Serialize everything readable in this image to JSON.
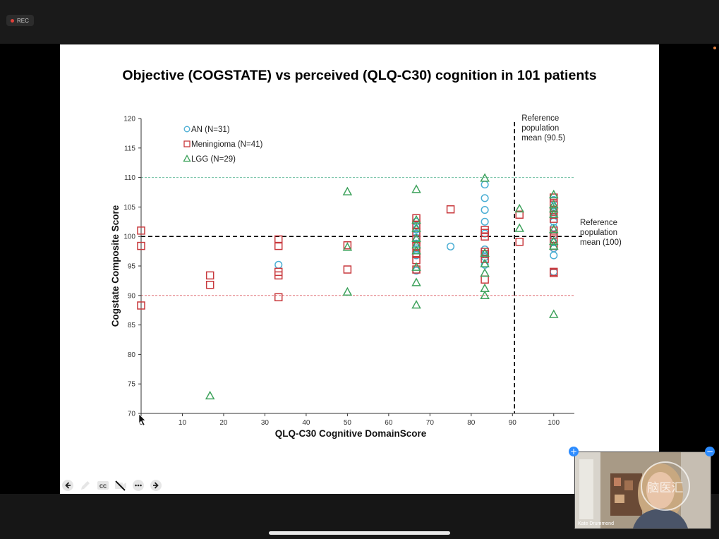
{
  "recording": {
    "label": "REC"
  },
  "slide": {
    "title": "Objective (COGSTATE) vs perceived (QLQ-C30) cognition in  101 patients"
  },
  "participant": {
    "name": "Kate Drummond",
    "watermark": "脑医汇"
  },
  "toolbar": {
    "icons": [
      "back-icon",
      "pen-icon",
      "captions-icon",
      "video-off-icon",
      "more-icon",
      "forward-icon"
    ]
  },
  "colors": {
    "AN": "#4aaed4",
    "Meningioma": "#c8383c",
    "LGG": "#3ea25c",
    "upper_ref": "#6cbfa0",
    "lower_ref": "#e07478"
  },
  "chart_data": {
    "type": "scatter",
    "xlabel": "QLQ-C30 Cognitive DomainScore",
    "ylabel": "Cogstate Composite Score",
    "xlim": [
      0,
      105
    ],
    "ylim": [
      70,
      120
    ],
    "xticks": [
      0,
      10,
      20,
      30,
      40,
      50,
      60,
      70,
      80,
      90,
      100
    ],
    "yticks": [
      70,
      75,
      80,
      85,
      90,
      95,
      100,
      105,
      110,
      115,
      120
    ],
    "legend_position": "top-left",
    "reference_lines": [
      {
        "axis": "x",
        "value": 90.5,
        "style": "dashed-black",
        "label": "Reference population mean (90.5)",
        "label_lines": [
          "Reference",
          "population",
          "mean (90.5)"
        ]
      },
      {
        "axis": "y",
        "value": 100,
        "style": "dashed-black",
        "label": "Reference population mean (100)",
        "label_lines": [
          "Reference",
          "population",
          "mean (100)"
        ]
      },
      {
        "axis": "y",
        "value": 110,
        "style": "dotted-green"
      },
      {
        "axis": "y",
        "value": 90,
        "style": "dotted-red"
      }
    ],
    "series": [
      {
        "name": "AN (N=31)",
        "marker": "circle",
        "color": "#4aaed4",
        "points": [
          [
            33.3,
            95.2
          ],
          [
            66.7,
            102.5
          ],
          [
            66.7,
            101.8
          ],
          [
            66.7,
            101.2
          ],
          [
            66.7,
            100.5
          ],
          [
            66.7,
            99.8
          ],
          [
            66.7,
            98.8
          ],
          [
            66.7,
            98.0
          ],
          [
            66.7,
            96.8
          ],
          [
            66.7,
            94.2
          ],
          [
            75,
            98.3
          ],
          [
            83.3,
            108.8
          ],
          [
            83.3,
            106.5
          ],
          [
            83.3,
            104.5
          ],
          [
            83.3,
            102.5
          ],
          [
            83.3,
            100.5
          ],
          [
            83.3,
            97.8
          ],
          [
            83.3,
            96.5
          ],
          [
            83.3,
            95.2
          ],
          [
            100,
            106.2
          ],
          [
            100,
            105.0
          ],
          [
            100,
            103.8
          ],
          [
            100,
            102.5
          ],
          [
            100,
            101.5
          ],
          [
            100,
            100.2
          ],
          [
            100,
            99.0
          ],
          [
            100,
            98.0
          ],
          [
            100,
            96.8
          ],
          [
            100,
            94.0
          ],
          [
            83.3,
            97.0
          ],
          [
            100,
            104.2
          ]
        ]
      },
      {
        "name": "Meningioma (N=41)",
        "marker": "square",
        "color": "#c8383c",
        "points": [
          [
            0,
            101.0
          ],
          [
            0,
            98.4
          ],
          [
            0,
            88.3
          ],
          [
            16.7,
            93.4
          ],
          [
            16.7,
            91.8
          ],
          [
            33.3,
            99.5
          ],
          [
            33.3,
            98.4
          ],
          [
            33.3,
            94.0
          ],
          [
            33.3,
            93.4
          ],
          [
            33.3,
            89.7
          ],
          [
            50,
            98.5
          ],
          [
            50,
            94.4
          ],
          [
            66.7,
            103.1
          ],
          [
            66.7,
            102.0
          ],
          [
            66.7,
            100.7
          ],
          [
            66.7,
            99.5
          ],
          [
            66.7,
            98.4
          ],
          [
            66.7,
            96.0
          ],
          [
            66.7,
            94.4
          ],
          [
            75,
            104.6
          ],
          [
            83.3,
            101.1
          ],
          [
            83.3,
            100.6
          ],
          [
            83.3,
            100.0
          ],
          [
            83.3,
            97.4
          ],
          [
            83.3,
            97.0
          ],
          [
            83.3,
            96.2
          ],
          [
            83.3,
            92.7
          ],
          [
            91.7,
            103.7
          ],
          [
            91.7,
            99.1
          ],
          [
            100,
            106.6
          ],
          [
            100,
            105.7
          ],
          [
            100,
            104.5
          ],
          [
            100,
            103.7
          ],
          [
            100,
            103.0
          ],
          [
            100,
            101.0
          ],
          [
            100,
            100.3
          ],
          [
            100,
            99.5
          ],
          [
            100,
            98.4
          ],
          [
            100,
            94.0
          ],
          [
            100,
            93.8
          ],
          [
            66.7,
            97.0
          ]
        ]
      },
      {
        "name": "LGG (N=29)",
        "marker": "triangle",
        "color": "#3ea25c",
        "points": [
          [
            16.7,
            73.0
          ],
          [
            50,
            107.6
          ],
          [
            50,
            98.2
          ],
          [
            50,
            90.6
          ],
          [
            66.7,
            108.0
          ],
          [
            66.7,
            102.8
          ],
          [
            66.7,
            101.4
          ],
          [
            66.7,
            99.7
          ],
          [
            66.7,
            98.6
          ],
          [
            66.7,
            97.6
          ],
          [
            66.7,
            94.8
          ],
          [
            66.7,
            92.2
          ],
          [
            66.7,
            88.4
          ],
          [
            83.3,
            109.9
          ],
          [
            83.3,
            97.2
          ],
          [
            83.3,
            95.4
          ],
          [
            83.3,
            93.8
          ],
          [
            83.3,
            91.2
          ],
          [
            83.3,
            90.0
          ],
          [
            91.7,
            104.7
          ],
          [
            91.7,
            101.4
          ],
          [
            100,
            107.1
          ],
          [
            100,
            105.4
          ],
          [
            100,
            104.7
          ],
          [
            100,
            103.8
          ],
          [
            100,
            101.2
          ],
          [
            100,
            99.2
          ],
          [
            100,
            98.4
          ],
          [
            100,
            86.8
          ]
        ]
      }
    ]
  }
}
